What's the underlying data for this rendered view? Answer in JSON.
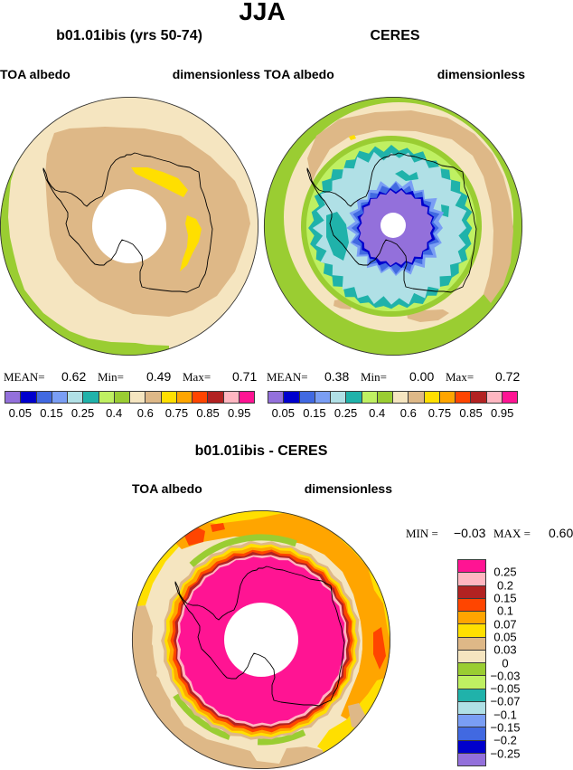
{
  "figure_title": "JJA",
  "chart_data": [
    {
      "type": "heatmap",
      "title": "b01.01ibis (yrs 50-74)",
      "left_string": "TOA albedo",
      "right_string": "dimensionless",
      "stats": {
        "mean_label": "MEAN=",
        "mean": "0.62",
        "min_label": "Min=",
        "min": "0.49",
        "max_label": "Max=",
        "max": "0.71"
      }
    },
    {
      "type": "heatmap",
      "title": "CERES",
      "left_string": "TOA albedo",
      "right_string": "dimensionless",
      "stats": {
        "mean_label": "MEAN=",
        "mean": "0.38",
        "min_label": "Min=",
        "min": "0.00",
        "max_label": "Max=",
        "max": "0.72"
      }
    },
    {
      "type": "heatmap",
      "title": "b01.01ibis - CERES",
      "left_string": "TOA albedo",
      "right_string": "dimensionless",
      "stats": {
        "min_label": "MIN =",
        "min": "−0.03",
        "max_label": "MAX =",
        "max": "0.60"
      }
    }
  ],
  "colorbars": {
    "absolute": {
      "colors": [
        "#9370DB",
        "#0000CD",
        "#4169E1",
        "#7A9EF4",
        "#B0E0E6",
        "#20B2AA",
        "#BFF062",
        "#9ACD32",
        "#F5E5C0",
        "#DEB887",
        "#FFDF00",
        "#FFA500",
        "#FF4500",
        "#B22222",
        "#FFB6C1",
        "#FF1493"
      ],
      "labels": [
        "0.05",
        "0.15",
        "0.25",
        "0.4",
        "0.6",
        "0.75",
        "0.85",
        "0.95"
      ]
    },
    "difference": {
      "colors": [
        "#FF1493",
        "#FFB6C1",
        "#B22222",
        "#FF4500",
        "#FFA500",
        "#FFDF00",
        "#DEB887",
        "#F5E5C0",
        "#9ACD32",
        "#BFF062",
        "#20B2AA",
        "#B0E0E6",
        "#7A9EF4",
        "#4169E1",
        "#0000CD",
        "#9370DB"
      ],
      "labels": [
        "0.25",
        "0.2",
        "0.15",
        "0.1",
        "0.07",
        "0.05",
        "0.03",
        "0",
        "−0.03",
        "−0.05",
        "−0.07",
        "−0.1",
        "−0.15",
        "−0.2",
        "−0.25"
      ]
    }
  }
}
